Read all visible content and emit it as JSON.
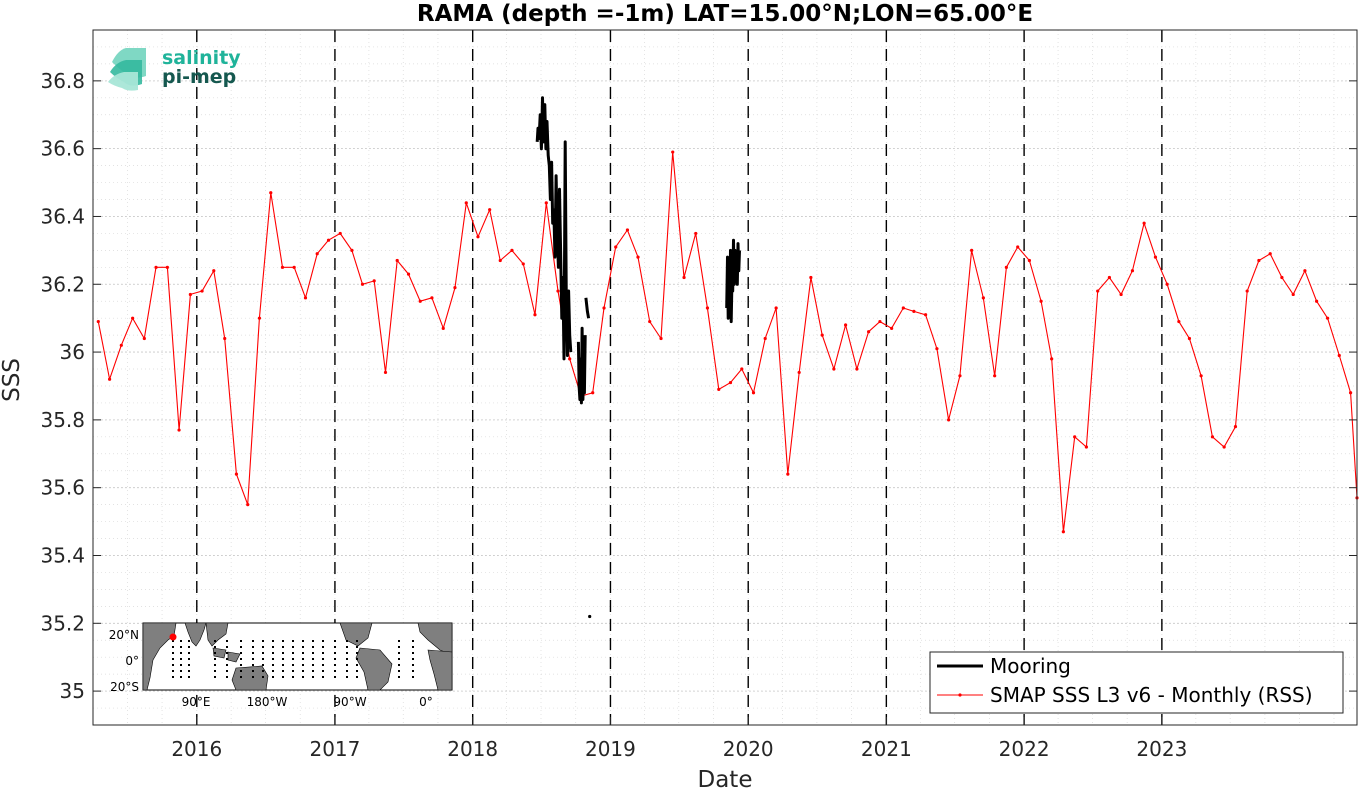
{
  "chart_data": {
    "type": "line",
    "title": "RAMA (depth =-1m) LAT=15.00°N;LON=65.00°E",
    "xlabel": "Date",
    "ylabel": "SSS",
    "xlim": [
      "2015-04-01",
      "2024-06-01"
    ],
    "ylim": [
      34.9,
      36.95
    ],
    "x_ticks": [
      "2016",
      "2017",
      "2018",
      "2019",
      "2020",
      "2021",
      "2022",
      "2023"
    ],
    "y_ticks": [
      35,
      35.2,
      35.4,
      35.6,
      35.8,
      36,
      36.2,
      36.4,
      36.6,
      36.8
    ],
    "y_tick_labels": [
      "35",
      "35.2",
      "35.4",
      "35.6",
      "35.8",
      "36",
      "36.2",
      "36.4",
      "36.6",
      "36.8"
    ],
    "grid": true,
    "vertical_dashed_lines_at": [
      "2016",
      "2017",
      "2018",
      "2019",
      "2020",
      "2021",
      "2022",
      "2023"
    ],
    "legend_position": "bottom-right",
    "series": [
      {
        "name": "Mooring",
        "color": "#000000",
        "style": "thick-line",
        "segments": [
          {
            "x": [
              "2018-06-21",
              "2018-06-23",
              "2018-06-26",
              "2018-06-29",
              "2018-07-02",
              "2018-07-05",
              "2018-07-08",
              "2018-07-11",
              "2018-07-14",
              "2018-07-17",
              "2018-07-20",
              "2018-07-23",
              "2018-07-26",
              "2018-07-29",
              "2018-08-01",
              "2018-08-04",
              "2018-08-07",
              "2018-08-10",
              "2018-08-13",
              "2018-08-16",
              "2018-08-19",
              "2018-08-22",
              "2018-08-25",
              "2018-08-28",
              "2018-08-31",
              "2018-09-03",
              "2018-09-06",
              "2018-09-09",
              "2018-09-12",
              "2018-09-15",
              "2018-09-18"
            ],
            "y": [
              36.62,
              36.66,
              36.63,
              36.7,
              36.6,
              36.75,
              36.62,
              36.73,
              36.6,
              36.68,
              36.58,
              36.55,
              36.45,
              36.56,
              36.38,
              36.42,
              36.28,
              36.52,
              36.36,
              36.25,
              36.48,
              36.3,
              36.1,
              36.22,
              35.98,
              36.62,
              36.15,
              35.99,
              36.18,
              36.05,
              36.0
            ]
          },
          {
            "x": [
              "2018-10-08",
              "2018-10-10",
              "2018-10-12",
              "2018-10-14",
              "2018-10-16",
              "2018-10-18",
              "2018-10-20",
              "2018-10-22",
              "2018-10-24",
              "2018-10-26"
            ],
            "y": [
              36.03,
              35.9,
              35.86,
              35.98,
              35.85,
              36.07,
              35.86,
              35.96,
              35.88,
              36.05
            ]
          },
          {
            "x": [
              "2018-10-28",
              "2018-11-01",
              "2018-11-04"
            ],
            "y": [
              36.16,
              36.12,
              36.1
            ]
          },
          {
            "x": [
              "2018-11-07"
            ],
            "y": [
              35.22
            ]
          },
          {
            "x": [
              "2019-11-05",
              "2019-11-07",
              "2019-11-09",
              "2019-11-11",
              "2019-11-13",
              "2019-11-15",
              "2019-11-17",
              "2019-11-19",
              "2019-11-21",
              "2019-11-23",
              "2019-11-25",
              "2019-11-27",
              "2019-11-29",
              "2019-12-01",
              "2019-12-03",
              "2019-12-05",
              "2019-12-07",
              "2019-12-09"
            ],
            "y": [
              36.13,
              36.28,
              36.1,
              36.25,
              36.12,
              36.3,
              36.09,
              36.22,
              36.18,
              36.33,
              36.2,
              36.3,
              36.22,
              36.28,
              36.2,
              36.32,
              36.24,
              36.3
            ]
          }
        ]
      },
      {
        "name": "SMAP SSS L3 v6 - Monthly (RSS)",
        "color": "#ff0000",
        "style": "thin-line-with-dots",
        "x": [
          "2015-04-15",
          "2015-05-15",
          "2015-06-15",
          "2015-07-15",
          "2015-08-15",
          "2015-09-15",
          "2015-10-15",
          "2015-11-15",
          "2015-12-15",
          "2016-01-15",
          "2016-02-15",
          "2016-03-15",
          "2016-04-15",
          "2016-05-15",
          "2016-06-15",
          "2016-07-15",
          "2016-08-15",
          "2016-09-15",
          "2016-10-15",
          "2016-11-15",
          "2016-12-15",
          "2017-01-15",
          "2017-02-15",
          "2017-03-15",
          "2017-04-15",
          "2017-05-15",
          "2017-06-15",
          "2017-07-15",
          "2017-08-15",
          "2017-09-15",
          "2017-10-15",
          "2017-11-15",
          "2017-12-15",
          "2018-01-15",
          "2018-02-15",
          "2018-03-15",
          "2018-04-15",
          "2018-05-15",
          "2018-06-15",
          "2018-07-15",
          "2018-08-15",
          "2018-09-15",
          "2018-10-15",
          "2018-11-15",
          "2018-12-15",
          "2019-01-15",
          "2019-02-15",
          "2019-03-15",
          "2019-04-15",
          "2019-05-15",
          "2019-06-15",
          "2019-07-15",
          "2019-08-15",
          "2019-09-15",
          "2019-10-15",
          "2019-11-15",
          "2019-12-15",
          "2020-01-15",
          "2020-02-15",
          "2020-03-15",
          "2020-04-15",
          "2020-05-15",
          "2020-06-15",
          "2020-07-15",
          "2020-08-15",
          "2020-09-15",
          "2020-10-15",
          "2020-11-15",
          "2020-12-15",
          "2021-01-15",
          "2021-02-15",
          "2021-03-15",
          "2021-04-15",
          "2021-05-15",
          "2021-06-15",
          "2021-07-15",
          "2021-08-15",
          "2021-09-15",
          "2021-10-15",
          "2021-11-15",
          "2021-12-15",
          "2022-01-15",
          "2022-02-15",
          "2022-03-15",
          "2022-04-15",
          "2022-05-15",
          "2022-06-15",
          "2022-07-15",
          "2022-08-15",
          "2022-09-15",
          "2022-10-15",
          "2022-11-15",
          "2022-12-15",
          "2023-01-15",
          "2023-02-15",
          "2023-03-15",
          "2023-04-15",
          "2023-05-15",
          "2023-06-15",
          "2023-07-15",
          "2023-08-15",
          "2023-09-15",
          "2023-10-15",
          "2023-11-15",
          "2023-12-15",
          "2024-01-15",
          "2024-02-15",
          "2024-03-15",
          "2024-04-15",
          "2024-05-15",
          "2024-06-01"
        ],
        "values": [
          36.09,
          35.92,
          36.02,
          36.1,
          36.04,
          36.25,
          36.25,
          35.77,
          36.17,
          36.18,
          36.24,
          36.04,
          35.64,
          35.55,
          36.1,
          36.47,
          36.25,
          36.25,
          36.16,
          36.29,
          36.33,
          36.35,
          36.3,
          36.2,
          36.21,
          35.94,
          36.27,
          36.23,
          36.15,
          36.16,
          36.07,
          36.19,
          36.44,
          36.34,
          36.42,
          36.27,
          36.3,
          36.26,
          36.11,
          36.44,
          36.18,
          35.98,
          35.87,
          35.88,
          36.13,
          36.31,
          36.36,
          36.28,
          36.09,
          36.04,
          36.59,
          36.22,
          36.35,
          36.13,
          35.89,
          35.91,
          35.95,
          35.88,
          36.04,
          36.13,
          35.64,
          35.94,
          36.22,
          36.05,
          35.95,
          36.08,
          35.95,
          36.06,
          36.09,
          36.07,
          36.13,
          36.12,
          36.11,
          36.01,
          35.8,
          35.93,
          36.3,
          36.16,
          35.93,
          36.25,
          36.31,
          36.27,
          36.15,
          35.98,
          35.47,
          35.75,
          35.72,
          36.18,
          36.22,
          36.17,
          36.24,
          36.38,
          36.28,
          36.2,
          36.09,
          36.04,
          35.93,
          35.75,
          35.72,
          35.78,
          36.18,
          36.27,
          36.29,
          36.22,
          36.17,
          36.24,
          36.15,
          36.1,
          35.99,
          35.88,
          35.57
        ]
      }
    ],
    "inset_map": {
      "lat_labels": [
        "20°N",
        "0°",
        "20°S"
      ],
      "lon_labels": [
        "90°E",
        "180°W",
        "90°W",
        "0°"
      ],
      "station_marker_color": "#ff0000"
    },
    "logo": {
      "line1": "salinity",
      "line2": "pi-mep"
    }
  }
}
